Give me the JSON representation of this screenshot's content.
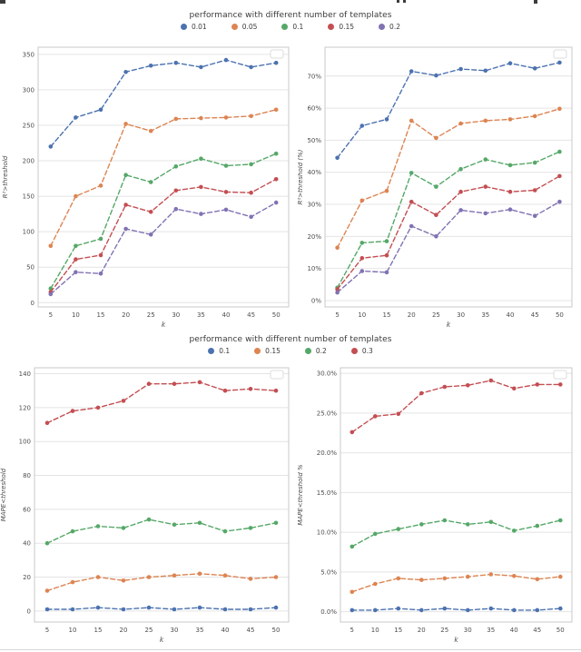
{
  "page": {
    "background": "#ffffff"
  },
  "legends": [
    {
      "title": "performance with different number of templates",
      "entries": [
        {
          "label": "0.01",
          "color": "#4C72B0"
        },
        {
          "label": "0.05",
          "color": "#DD8452"
        },
        {
          "label": "0.1",
          "color": "#55A868"
        },
        {
          "label": "0.15",
          "color": "#C44E52"
        },
        {
          "label": "0.2",
          "color": "#8172B3"
        }
      ]
    },
    {
      "title": "performance with different number of templates",
      "entries": [
        {
          "label": "0.1",
          "color": "#4C72B0"
        },
        {
          "label": "0.15",
          "color": "#DD8452"
        },
        {
          "label": "0.2",
          "color": "#55A868"
        },
        {
          "label": "0.3",
          "color": "#C44E52"
        }
      ]
    }
  ],
  "chart_data": [
    {
      "type": "line",
      "title": "",
      "xlabel": "k",
      "ylabel": "R²>threshold",
      "x": [
        5,
        10,
        15,
        20,
        25,
        30,
        35,
        40,
        45,
        50
      ],
      "xlim": [
        2.5,
        52.5
      ],
      "ylim": [
        -6,
        360
      ],
      "yticks": [
        0,
        50,
        100,
        150,
        200,
        250,
        300,
        350
      ],
      "ytick_labels": [
        "0",
        "50",
        "100",
        "150",
        "200",
        "250",
        "300",
        "350"
      ],
      "grid": "horizontal",
      "legend_position": "empty-box-top-right",
      "line_style": "dashed-with-markers",
      "series": [
        {
          "name": "0.01",
          "color": "#4C72B0",
          "values": [
            220,
            261,
            272,
            325,
            334,
            338,
            332,
            342,
            332,
            338
          ]
        },
        {
          "name": "0.05",
          "color": "#DD8452",
          "values": [
            80,
            150,
            165,
            252,
            242,
            259,
            260,
            261,
            263,
            272
          ]
        },
        {
          "name": "0.1",
          "color": "#55A868",
          "values": [
            20,
            80,
            90,
            180,
            170,
            192,
            203,
            193,
            195,
            210
          ]
        },
        {
          "name": "0.15",
          "color": "#C44E52",
          "values": [
            15,
            61,
            67,
            138,
            128,
            158,
            163,
            156,
            155,
            174
          ]
        },
        {
          "name": "0.2",
          "color": "#8172B3",
          "values": [
            12,
            43,
            41,
            104,
            96,
            132,
            125,
            131,
            121,
            141
          ]
        }
      ]
    },
    {
      "type": "line",
      "title": "",
      "xlabel": "k",
      "ylabel": "R²>threshold (%)",
      "x": [
        5,
        10,
        15,
        20,
        25,
        30,
        35,
        40,
        45,
        50
      ],
      "xlim": [
        2.5,
        52.5
      ],
      "ylim": [
        -2,
        79
      ],
      "yticks": [
        0,
        10,
        20,
        30,
        40,
        50,
        60,
        70
      ],
      "ytick_labels": [
        "0%",
        "10%",
        "20%",
        "30%",
        "40%",
        "50%",
        "60%",
        "70%"
      ],
      "grid": "horizontal",
      "legend_position": "empty-box-top-right",
      "line_style": "dashed-with-markers",
      "series": [
        {
          "name": "0.01",
          "color": "#4C72B0",
          "values": [
            44.5,
            54.5,
            56.5,
            71.5,
            70.2,
            72.2,
            71.7,
            74.0,
            72.4,
            74.2
          ]
        },
        {
          "name": "0.05",
          "color": "#DD8452",
          "values": [
            16.5,
            31.2,
            34.2,
            56.1,
            50.7,
            55.2,
            56.1,
            56.5,
            57.5,
            59.8
          ]
        },
        {
          "name": "0.1",
          "color": "#55A868",
          "values": [
            4.0,
            18.0,
            18.5,
            39.8,
            35.5,
            41.0,
            44.0,
            42.2,
            43.0,
            46.4
          ]
        },
        {
          "name": "0.15",
          "color": "#C44E52",
          "values": [
            3.5,
            13.2,
            14.1,
            30.8,
            26.7,
            33.9,
            35.5,
            33.9,
            34.4,
            38.8
          ]
        },
        {
          "name": "0.2",
          "color": "#8172B3",
          "values": [
            2.5,
            9.2,
            8.8,
            23.2,
            20.0,
            28.2,
            27.2,
            28.4,
            26.4,
            30.8
          ]
        }
      ]
    },
    {
      "type": "line",
      "title": "",
      "xlabel": "k",
      "ylabel": "MAPE<threshold",
      "x": [
        5,
        10,
        15,
        20,
        25,
        30,
        35,
        40,
        45,
        50
      ],
      "xlim": [
        2.5,
        52.5
      ],
      "ylim": [
        -6.5,
        143.5
      ],
      "yticks": [
        0,
        20,
        40,
        60,
        80,
        100,
        120,
        140
      ],
      "ytick_labels": [
        "0",
        "20",
        "40",
        "60",
        "80",
        "100",
        "120",
        "140"
      ],
      "grid": "horizontal",
      "legend_position": "empty-box-top-right",
      "line_style": "dashed-with-markers",
      "series": [
        {
          "name": "0.1",
          "color": "#4C72B0",
          "values": [
            1,
            1,
            2,
            1,
            2,
            1,
            2,
            1,
            1,
            2
          ]
        },
        {
          "name": "0.15",
          "color": "#DD8452",
          "values": [
            12,
            17,
            20,
            18,
            20,
            21,
            22,
            21,
            19,
            20
          ]
        },
        {
          "name": "0.2",
          "color": "#55A868",
          "values": [
            40,
            47,
            50,
            49,
            54,
            51,
            52,
            47,
            49,
            52
          ]
        },
        {
          "name": "0.3",
          "color": "#C44E52",
          "values": [
            111,
            118,
            120,
            124,
            134,
            134,
            135,
            130,
            131,
            130
          ]
        }
      ]
    },
    {
      "type": "line",
      "title": "",
      "xlabel": "k",
      "ylabel": "MAPE<threshold %",
      "x": [
        5,
        10,
        15,
        20,
        25,
        30,
        35,
        40,
        45,
        50
      ],
      "xlim": [
        2.5,
        52.5
      ],
      "ylim": [
        -1.3,
        30.7
      ],
      "yticks": [
        0,
        5,
        10,
        15,
        20,
        25,
        30
      ],
      "ytick_labels": [
        "0.0%",
        "5.0%",
        "10.0%",
        "15.0%",
        "20.0%",
        "25.0%",
        "30.0%"
      ],
      "grid": "horizontal",
      "legend_position": "empty-box-top-right",
      "line_style": "dashed-with-markers",
      "series": [
        {
          "name": "0.1",
          "color": "#4C72B0",
          "values": [
            0.2,
            0.2,
            0.4,
            0.2,
            0.4,
            0.2,
            0.4,
            0.2,
            0.2,
            0.4
          ]
        },
        {
          "name": "0.15",
          "color": "#DD8452",
          "values": [
            2.5,
            3.5,
            4.2,
            4.0,
            4.2,
            4.4,
            4.7,
            4.5,
            4.1,
            4.4
          ]
        },
        {
          "name": "0.2",
          "color": "#55A868",
          "values": [
            8.2,
            9.8,
            10.4,
            11.0,
            11.5,
            11.0,
            11.3,
            10.2,
            10.8,
            11.5
          ]
        },
        {
          "name": "0.3",
          "color": "#C44E52",
          "values": [
            22.6,
            24.6,
            24.9,
            27.5,
            28.3,
            28.5,
            29.1,
            28.1,
            28.6,
            28.6
          ]
        }
      ]
    }
  ]
}
